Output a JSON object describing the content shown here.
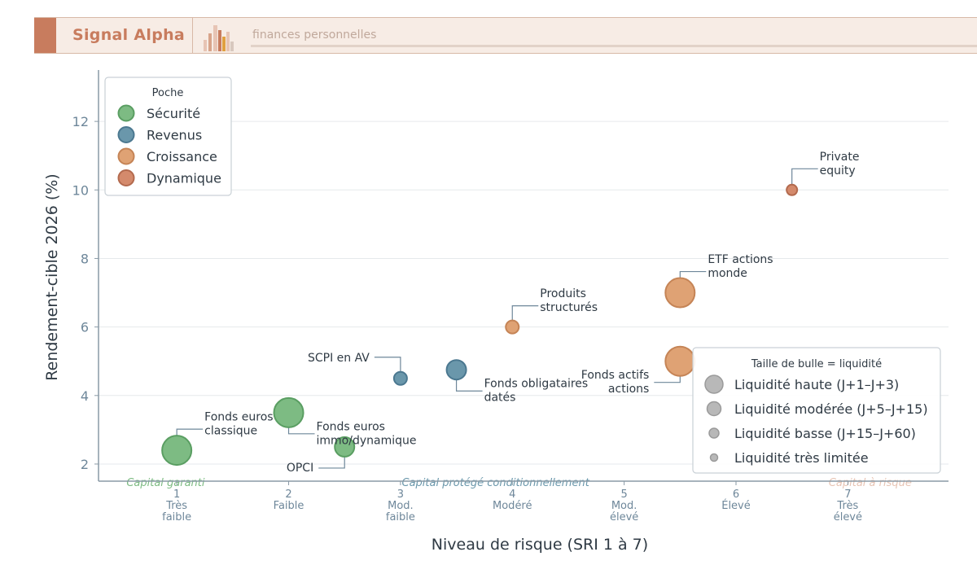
{
  "header": {
    "brand": "Signal Alpha",
    "tagline": "finances personnelles",
    "accent_color": "#c87c5e",
    "logo_icon": "bar-chart-logo"
  },
  "chart_data": {
    "type": "scatter",
    "xlabel": "Niveau de risque (SRI 1 à 7)",
    "ylabel": "Rendement-cible 2026 (%)",
    "xlim": [
      0.3,
      7.9
    ],
    "ylim": [
      1.5,
      13.5
    ],
    "yticks": [
      2,
      4,
      6,
      8,
      10,
      12
    ],
    "xticks": [
      {
        "value": 1,
        "lines": [
          "1",
          "Très",
          "faible"
        ]
      },
      {
        "value": 2,
        "lines": [
          "2",
          "Faible"
        ]
      },
      {
        "value": 3,
        "lines": [
          "3",
          "Mod.",
          "faible"
        ]
      },
      {
        "value": 4,
        "lines": [
          "4",
          "Modéré"
        ]
      },
      {
        "value": 5,
        "lines": [
          "5",
          "Mod.",
          "élevé"
        ]
      },
      {
        "value": 6,
        "lines": [
          "6",
          "Élevé"
        ]
      },
      {
        "value": 7,
        "lines": [
          "7",
          "Très",
          "élevé"
        ]
      }
    ],
    "grid": "horizontal",
    "series": [
      {
        "name": "Sécurité",
        "color": "#7dbb83",
        "edge": "#5a9e62"
      },
      {
        "name": "Revenus",
        "color": "#6a97ab",
        "edge": "#4b7890"
      },
      {
        "name": "Croissance",
        "color": "#dfa274",
        "edge": "#c58456"
      },
      {
        "name": "Dynamique",
        "color": "#d48a6c",
        "edge": "#b36a4e"
      }
    ],
    "points": [
      {
        "label": [
          "Fonds euros",
          "classique"
        ],
        "x": 1.0,
        "y": 2.4,
        "series": "Sécurité",
        "liquidity": "haute",
        "label_side": "right-up"
      },
      {
        "label": [
          "Fonds euros",
          "immo/dynamique"
        ],
        "x": 2.0,
        "y": 3.5,
        "series": "Sécurité",
        "liquidity": "haute",
        "label_side": "right-down"
      },
      {
        "label": [
          "OPCI"
        ],
        "x": 2.5,
        "y": 2.5,
        "series": "Sécurité",
        "liquidity": "modérée",
        "label_side": "left-down"
      },
      {
        "label": [
          "SCPI en AV"
        ],
        "x": 3.0,
        "y": 4.5,
        "series": "Revenus",
        "liquidity": "basse",
        "label_side": "left-up"
      },
      {
        "label": [
          "Fonds obligataires",
          "datés"
        ],
        "x": 3.5,
        "y": 4.75,
        "series": "Revenus",
        "liquidity": "modérée",
        "label_side": "right-down"
      },
      {
        "label": [
          "Produits",
          "structurés"
        ],
        "x": 4.0,
        "y": 6.0,
        "series": "Croissance",
        "liquidity": "basse",
        "label_side": "right-up"
      },
      {
        "label": [
          "ETF actions",
          "monde"
        ],
        "x": 5.5,
        "y": 7.0,
        "series": "Croissance",
        "liquidity": "haute",
        "label_side": "right-up"
      },
      {
        "label": [
          "Fonds actifs",
          "actions"
        ],
        "x": 5.5,
        "y": 5.0,
        "series": "Croissance",
        "liquidity": "haute",
        "label_side": "left-down"
      },
      {
        "label": [
          "Private",
          "equity"
        ],
        "x": 6.5,
        "y": 10.0,
        "series": "Dynamique",
        "liquidity": "très limitée",
        "label_side": "right-up"
      }
    ],
    "zones": [
      {
        "label": "Capital garanti",
        "x": 0.9,
        "color": "#7dbb83"
      },
      {
        "label": "Capital protégé conditionnellement",
        "x": 3.85,
        "color": "#6a97ab"
      },
      {
        "label": "Capital à risque",
        "x": 7.2,
        "color": "#e7c4b4"
      }
    ],
    "zone_label_y": 1.5,
    "legend_poche": {
      "title": "Poche",
      "placement": "top-left"
    },
    "legend_size": {
      "title": "Taille de bulle = liquidité",
      "placement": "bottom-right",
      "entries": [
        {
          "label": "Liquidité haute (J+1–J+3)",
          "liquidity": "haute"
        },
        {
          "label": "Liquidité modérée (J+5–J+15)",
          "liquidity": "modérée"
        },
        {
          "label": "Liquidité basse (J+15–J+60)",
          "liquidity": "basse"
        },
        {
          "label": "Liquidité très limitée",
          "liquidity": "très limitée"
        }
      ]
    },
    "size_color": "#b8b8b8"
  }
}
